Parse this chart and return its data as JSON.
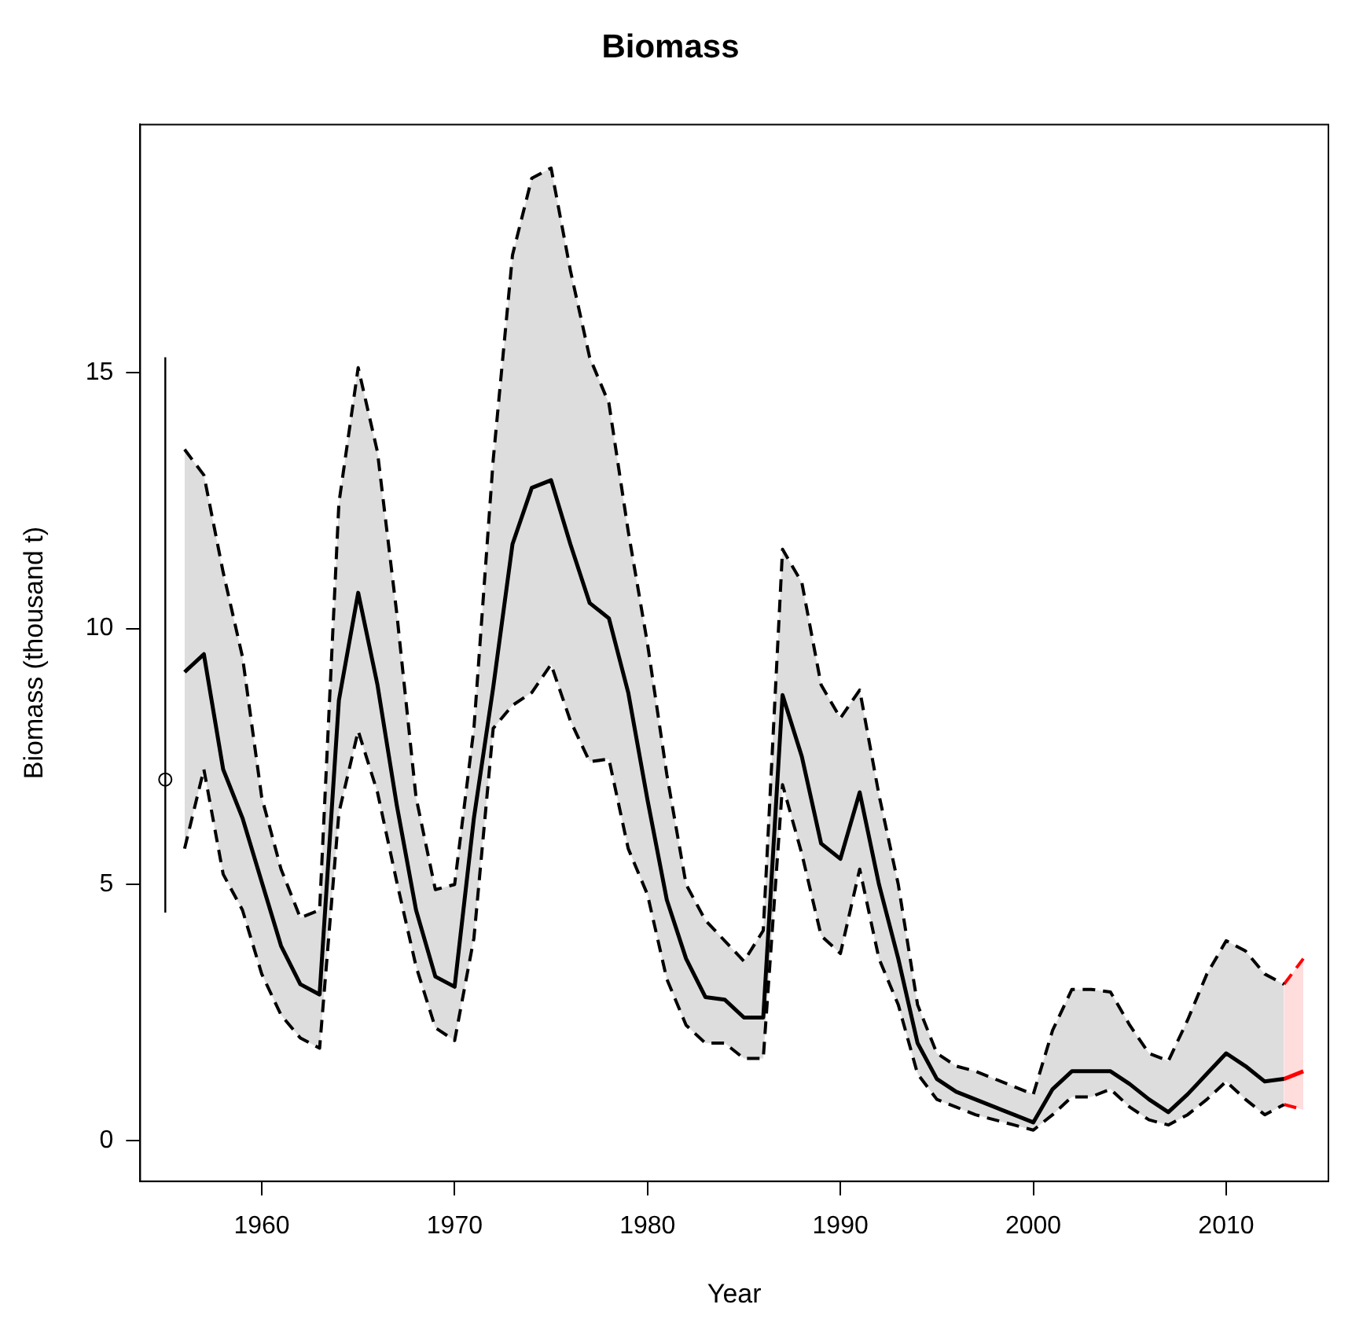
{
  "chart_data": {
    "type": "line",
    "title": "Biomass",
    "xlabel": "Year",
    "ylabel": "Biomass (thousand t)",
    "xlim": [
      1953.7,
      2015.3
    ],
    "xticks": [
      1960,
      1970,
      1980,
      1990,
      2000,
      2010
    ],
    "ylim": [
      -0.8,
      19.85
    ],
    "yticks": [
      0,
      5,
      10,
      15
    ],
    "grid": false,
    "legend": false,
    "line_style": "solid",
    "series": [
      {
        "color": "#000000",
        "x": [
          1956,
          1957,
          1958,
          1959,
          1960,
          1961,
          1962,
          1963,
          1964,
          1965,
          1966,
          1967,
          1968,
          1969,
          1970,
          1971,
          1972,
          1973,
          1974,
          1975,
          1976,
          1977,
          1978,
          1979,
          1980,
          1981,
          1982,
          1983,
          1984,
          1985,
          1986,
          1987,
          1988,
          1989,
          1990,
          1991,
          1992,
          1993,
          1994,
          1995,
          1996,
          1997,
          1998,
          1999,
          2000,
          2001,
          2002,
          2003,
          2004,
          2005,
          2006,
          2007,
          2008,
          2009,
          2010,
          2011,
          2012,
          2013
        ],
        "values": [
          9.15,
          9.5,
          7.25,
          6.3,
          5.05,
          3.8,
          3.05,
          2.85,
          8.6,
          10.7,
          8.9,
          6.55,
          4.5,
          3.2,
          3.0,
          6.3,
          8.85,
          11.65,
          12.75,
          12.9,
          11.65,
          10.5,
          10.2,
          8.75,
          6.65,
          4.7,
          3.55,
          2.8,
          2.75,
          2.4,
          2.4,
          8.7,
          7.5,
          5.8,
          5.5,
          6.8,
          5.0,
          3.55,
          1.9,
          1.2,
          0.95,
          0.8,
          0.65,
          0.5,
          0.35,
          1.0,
          1.35,
          1.35,
          1.35,
          1.1,
          0.8,
          0.55,
          0.9,
          1.3,
          1.7,
          1.45,
          1.15,
          1.2
        ],
        "upper": [
          13.5,
          13.0,
          11.1,
          9.45,
          6.7,
          5.3,
          4.35,
          4.5,
          12.45,
          15.1,
          13.45,
          10.3,
          6.7,
          4.9,
          5.0,
          8.05,
          13.3,
          17.3,
          18.8,
          19.0,
          17.0,
          15.3,
          14.4,
          11.9,
          9.7,
          7.15,
          5.0,
          4.3,
          3.9,
          3.5,
          4.1,
          11.55,
          10.9,
          8.9,
          8.25,
          8.8,
          6.75,
          5.0,
          2.65,
          1.7,
          1.45,
          1.35,
          1.2,
          1.05,
          0.9,
          2.15,
          2.95,
          2.95,
          2.9,
          2.25,
          1.7,
          1.55,
          2.35,
          3.25,
          3.9,
          3.7,
          3.25,
          3.05
        ],
        "lower": [
          5.7,
          7.25,
          5.2,
          4.5,
          3.25,
          2.45,
          2.0,
          1.8,
          6.4,
          8.0,
          6.8,
          5.05,
          3.4,
          2.2,
          1.95,
          3.95,
          8.05,
          8.5,
          8.75,
          9.3,
          8.2,
          7.4,
          7.45,
          5.7,
          4.8,
          3.15,
          2.25,
          1.9,
          1.9,
          1.6,
          1.6,
          6.95,
          5.6,
          4.0,
          3.65,
          5.3,
          3.55,
          2.65,
          1.3,
          0.8,
          0.65,
          0.5,
          0.4,
          0.3,
          0.2,
          0.5,
          0.85,
          0.85,
          1.0,
          0.65,
          0.4,
          0.3,
          0.5,
          0.8,
          1.15,
          0.8,
          0.5,
          0.7
        ]
      },
      {
        "color": "#000000",
        "line_style": "dashed",
        "x": [
          1956,
          1957,
          1958,
          1959,
          1960,
          1961,
          1962,
          1963,
          1964,
          1965,
          1966,
          1967,
          1968,
          1969,
          1970,
          1971,
          1972,
          1973,
          1974,
          1975,
          1976,
          1977,
          1978,
          1979,
          1980,
          1981,
          1982,
          1983,
          1984,
          1985,
          1986,
          1987,
          1988,
          1989,
          1990,
          1991,
          1992,
          1993,
          1994,
          1995,
          1996,
          1997,
          1998,
          1999,
          2000,
          2001,
          2002,
          2003,
          2004,
          2005,
          2006,
          2007,
          2008,
          2009,
          2010,
          2011,
          2012,
          2013
        ],
        "values": [
          13.5,
          13.0,
          11.1,
          9.45,
          6.7,
          5.3,
          4.35,
          4.5,
          12.45,
          15.1,
          13.45,
          10.3,
          6.7,
          4.9,
          5.0,
          8.05,
          13.3,
          17.3,
          18.8,
          19.0,
          17.0,
          15.3,
          14.4,
          11.9,
          9.7,
          7.15,
          5.0,
          4.3,
          3.9,
          3.5,
          4.1,
          11.55,
          10.9,
          8.9,
          8.25,
          8.8,
          6.75,
          5.0,
          2.65,
          1.7,
          1.45,
          1.35,
          1.2,
          1.05,
          0.9,
          2.15,
          2.95,
          2.95,
          2.9,
          2.25,
          1.7,
          1.55,
          2.35,
          3.25,
          3.9,
          3.7,
          3.25,
          3.05
        ]
      },
      {
        "color": "#000000",
        "line_style": "dashed",
        "x": [
          1956,
          1957,
          1958,
          1959,
          1960,
          1961,
          1962,
          1963,
          1964,
          1965,
          1966,
          1967,
          1968,
          1969,
          1970,
          1971,
          1972,
          1973,
          1974,
          1975,
          1976,
          1977,
          1978,
          1979,
          1980,
          1981,
          1982,
          1983,
          1984,
          1985,
          1986,
          1987,
          1988,
          1989,
          1990,
          1991,
          1992,
          1993,
          1994,
          1995,
          1996,
          1997,
          1998,
          1999,
          2000,
          2001,
          2002,
          2003,
          2004,
          2005,
          2006,
          2007,
          2008,
          2009,
          2010,
          2011,
          2012,
          2013
        ],
        "values": [
          5.7,
          7.25,
          5.2,
          4.5,
          3.25,
          2.45,
          2.0,
          1.8,
          6.4,
          8.0,
          6.8,
          5.05,
          3.4,
          2.2,
          1.95,
          3.95,
          8.05,
          8.5,
          8.75,
          9.3,
          8.2,
          7.4,
          7.45,
          5.7,
          4.8,
          3.15,
          2.25,
          1.9,
          1.9,
          1.6,
          1.6,
          6.95,
          5.6,
          4.0,
          3.65,
          5.3,
          3.55,
          2.65,
          1.3,
          0.8,
          0.65,
          0.5,
          0.4,
          0.3,
          0.2,
          0.5,
          0.85,
          0.85,
          1.0,
          0.65,
          0.4,
          0.3,
          0.5,
          0.8,
          1.15,
          0.8,
          0.5,
          0.7
        ]
      },
      {
        "color": "#ff0000",
        "x": [
          2013,
          2014
        ],
        "values": [
          1.2,
          1.35
        ],
        "upper": [
          3.05,
          3.55
        ],
        "lower": [
          0.7,
          0.6
        ]
      },
      {
        "color": "#ff0000",
        "line_style": "dashed",
        "x": [
          2013,
          2014
        ],
        "values": [
          3.05,
          3.55
        ]
      },
      {
        "color": "#ff0000",
        "line_style": "dashed",
        "x": [
          2013,
          2014
        ],
        "values": [
          0.7,
          0.6
        ]
      },
      {
        "type": "scatter",
        "color": "#000000",
        "marker": "circle",
        "x": [
          1955
        ],
        "values": [
          7.05
        ],
        "errors": [
          [
            4.45,
            15.3
          ]
        ]
      }
    ]
  }
}
